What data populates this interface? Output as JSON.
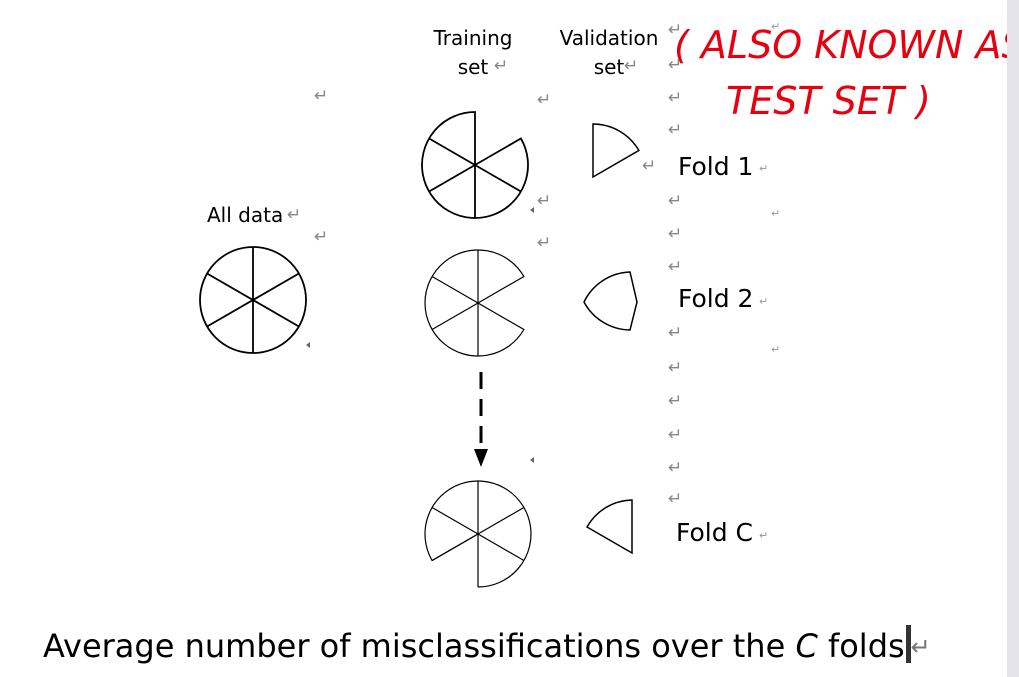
{
  "labels": {
    "training_set": "Training\nset",
    "validation_set": "Validation\nset",
    "all_data": "All data"
  },
  "folds": [
    "Fold 1",
    "Fold 2",
    "Fold C"
  ],
  "caption": {
    "before": "Average number of misclassifications over the ",
    "italic": "C",
    "after": " folds"
  },
  "annotation": {
    "line1": "( ALSO KNOWN AS",
    "line2": "TEST SET )",
    "color": "#e8000f"
  },
  "return_mark": "↵"
}
